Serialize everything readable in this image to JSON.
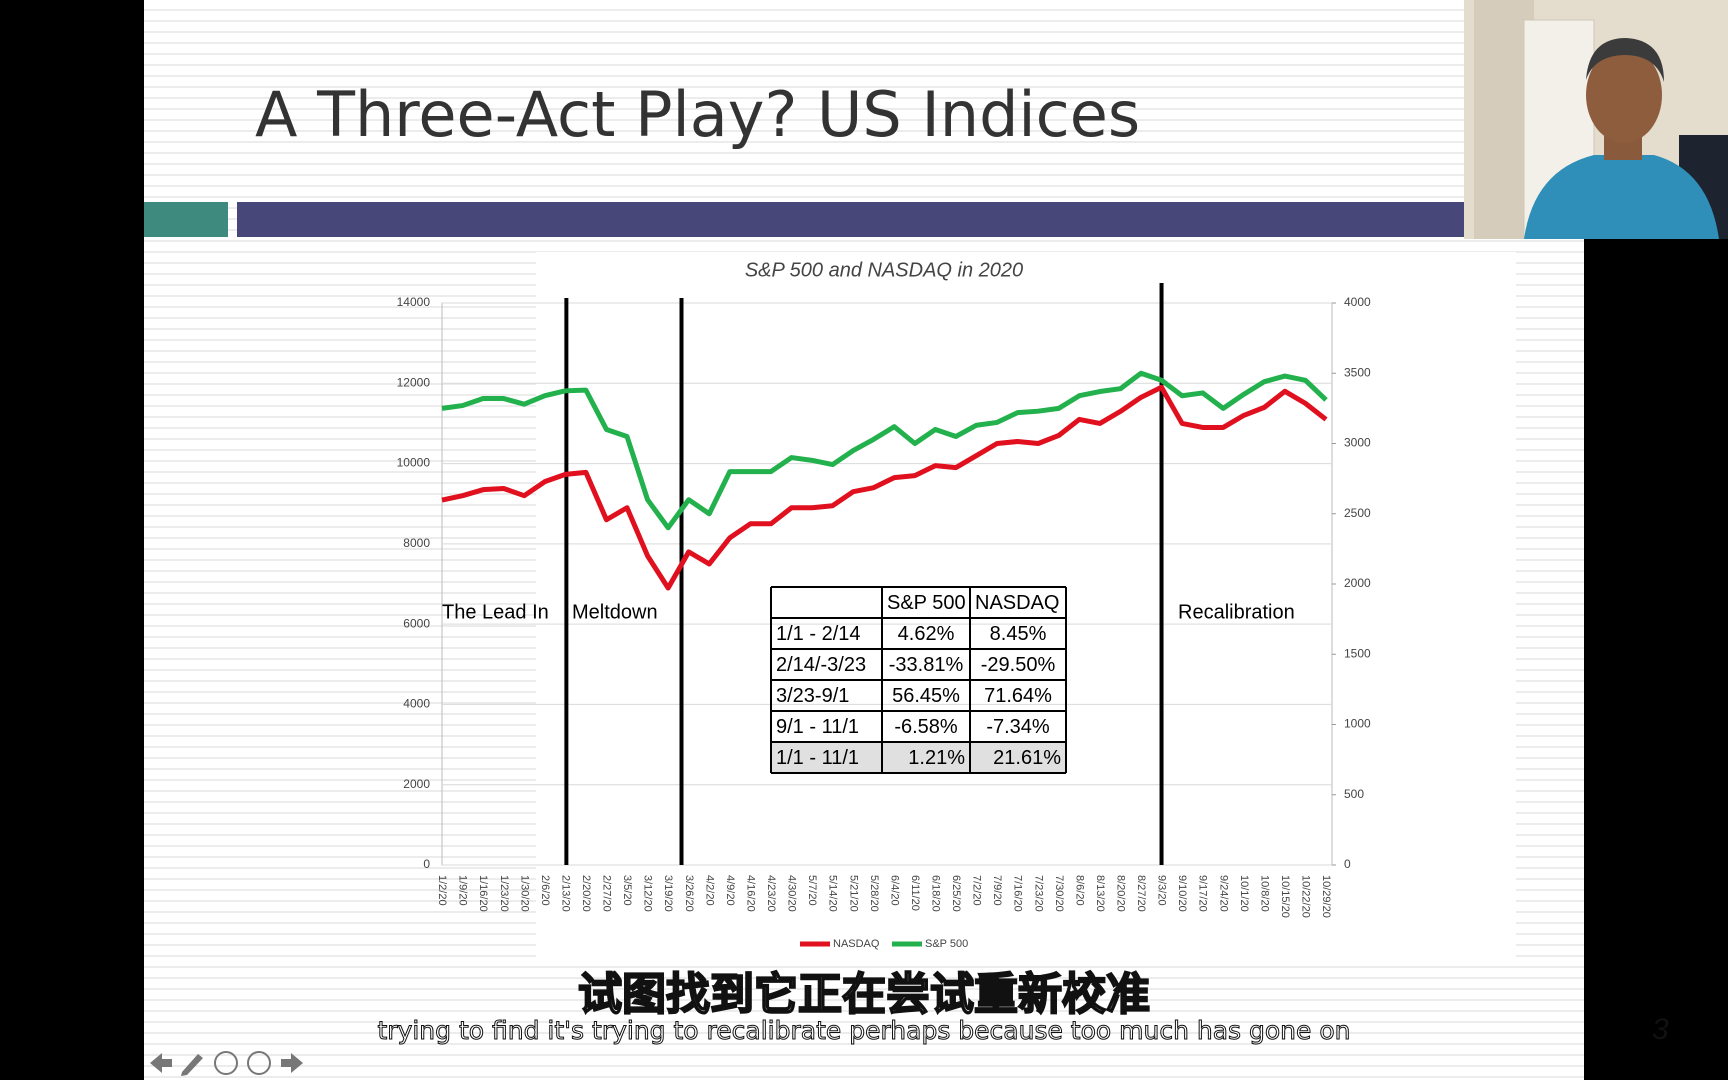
{
  "slide": {
    "title": "A Three-Act Play? US Indices",
    "page_number": "3"
  },
  "chart_data": {
    "type": "line",
    "title": "S&P 500 and NASDAQ in 2020",
    "categories": [
      "1/2/20",
      "1/9/20",
      "1/16/20",
      "1/23/20",
      "1/30/20",
      "2/6/20",
      "2/13/20",
      "2/20/20",
      "2/27/20",
      "3/5/20",
      "3/12/20",
      "3/19/20",
      "3/26/20",
      "4/2/20",
      "4/9/20",
      "4/16/20",
      "4/23/20",
      "4/30/20",
      "5/7/20",
      "5/14/20",
      "5/21/20",
      "5/28/20",
      "6/4/20",
      "6/11/20",
      "6/18/20",
      "6/25/20",
      "7/2/20",
      "7/9/20",
      "7/16/20",
      "7/23/20",
      "7/30/20",
      "8/6/20",
      "8/13/20",
      "8/20/20",
      "8/27/20",
      "9/3/20",
      "9/10/20",
      "9/17/20",
      "9/24/20",
      "10/1/20",
      "10/8/20",
      "10/15/20",
      "10/22/20",
      "10/29/20"
    ],
    "series": [
      {
        "name": "NASDAQ",
        "color": "#e0101e",
        "values": [
          9090,
          9200,
          9350,
          9380,
          9200,
          9550,
          9730,
          9780,
          8600,
          8900,
          7700,
          6900,
          7800,
          7500,
          8150,
          8500,
          8500,
          8900,
          8900,
          8950,
          9300,
          9400,
          9650,
          9700,
          9950,
          9900,
          10200,
          10500,
          10550,
          10500,
          10700,
          11100,
          11000,
          11300,
          11650,
          11900,
          11000,
          10900,
          10900,
          11200,
          11400,
          11800,
          11500,
          11100
        ]
      },
      {
        "name": "S&P 500",
        "color": "#22b14c",
        "axis": "y2",
        "values": [
          3250,
          3270,
          3320,
          3320,
          3280,
          3340,
          3375,
          3380,
          3100,
          3050,
          2600,
          2400,
          2600,
          2500,
          2800,
          2800,
          2800,
          2900,
          2880,
          2850,
          2950,
          3030,
          3120,
          3000,
          3100,
          3050,
          3130,
          3150,
          3220,
          3230,
          3250,
          3340,
          3370,
          3390,
          3500,
          3450,
          3340,
          3360,
          3250,
          3350,
          3440,
          3480,
          3450,
          3310
        ]
      }
    ],
    "ylim": [
      0,
      14000
    ],
    "yticks": [
      0,
      2000,
      4000,
      6000,
      8000,
      10000,
      12000,
      14000
    ],
    "y2lim": [
      0,
      4000
    ],
    "y2ticks": [
      0,
      500,
      1000,
      1500,
      2000,
      2500,
      3000,
      3500,
      4000
    ],
    "grid": true,
    "legend": "bottom",
    "annotations": [
      "The Lead In",
      "Meltdown",
      "Recalibration"
    ]
  },
  "table": {
    "header": [
      "S&P 500",
      "NASDAQ"
    ],
    "rows": [
      [
        "1/1 - 2/14",
        "4.62%",
        "8.45%"
      ],
      [
        "2/14/-3/23",
        "-33.81%",
        "-29.50%"
      ],
      [
        "3/23-9/1",
        "56.45%",
        "71.64%"
      ],
      [
        "9/1 - 11/1",
        "-6.58%",
        "-7.34%"
      ],
      [
        "1/1 - 11/1",
        "1.21%",
        "21.61%"
      ]
    ]
  },
  "subtitles": {
    "chinese": "试图找到它正在尝试重新校准",
    "english": "trying to find it's trying to recalibrate perhaps because too much has gone on"
  }
}
